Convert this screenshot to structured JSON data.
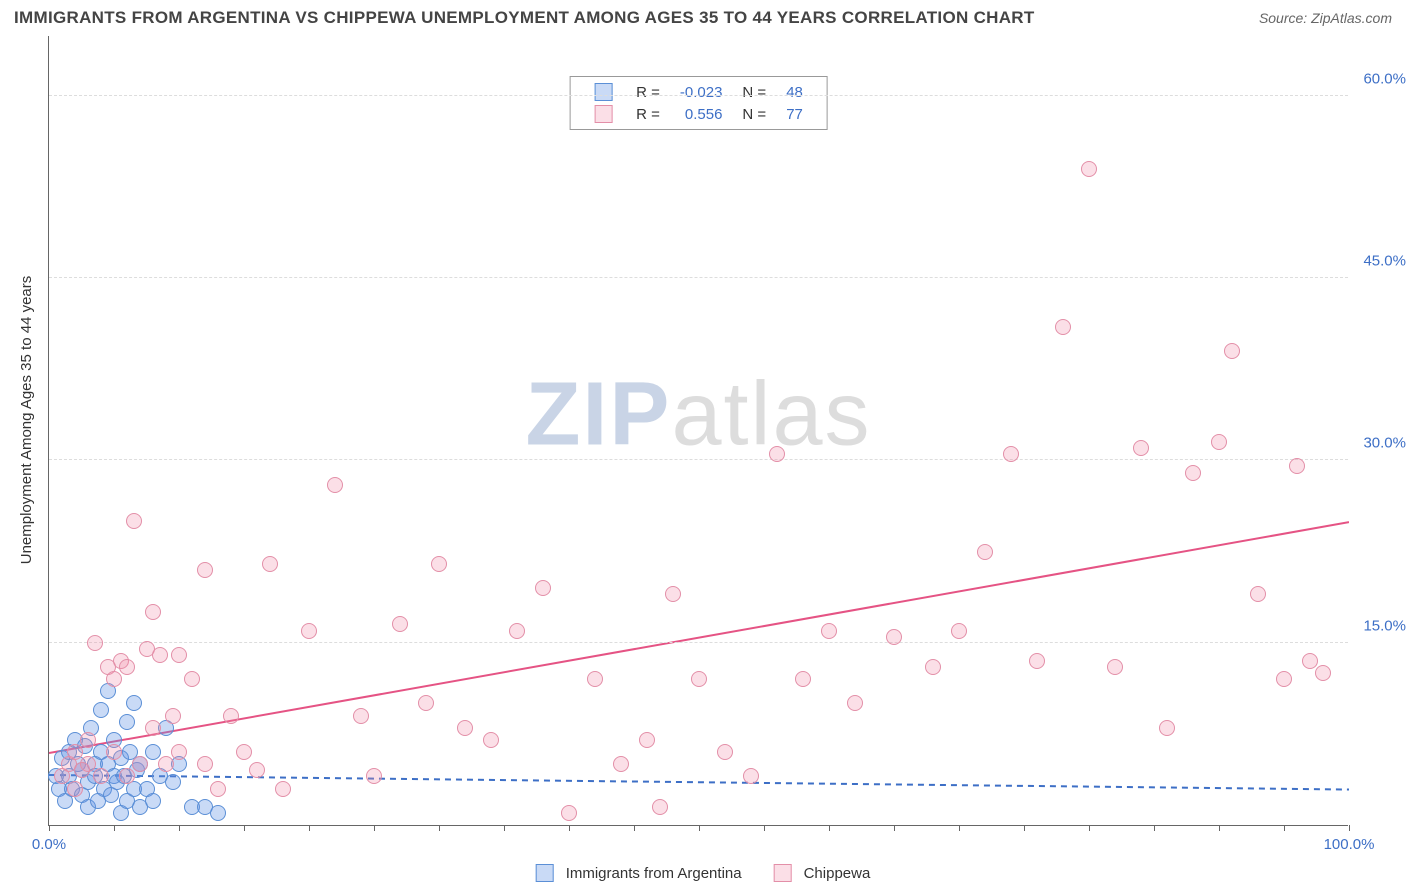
{
  "title": "IMMIGRANTS FROM ARGENTINA VS CHIPPEWA UNEMPLOYMENT AMONG AGES 35 TO 44 YEARS CORRELATION CHART",
  "source": "Source: ZipAtlas.com",
  "watermark_part1": "ZIP",
  "watermark_part2": "atlas",
  "y_axis_title": "Unemployment Among Ages 35 to 44 years",
  "chart": {
    "type": "scatter",
    "background_color": "#ffffff",
    "grid_color": "#dddddd",
    "axis_color": "#666666",
    "xlim": [
      0,
      100
    ],
    "ylim": [
      0,
      65
    ],
    "x_ticks": [
      0,
      5,
      10,
      15,
      20,
      25,
      30,
      35,
      40,
      45,
      50,
      55,
      60,
      65,
      70,
      75,
      80,
      85,
      90,
      95,
      100
    ],
    "x_tick_labels": {
      "0": "0.0%",
      "100": "100.0%"
    },
    "y_gridlines": [
      15,
      30,
      45,
      60
    ],
    "y_tick_labels": {
      "15": "15.0%",
      "30": "30.0%",
      "45": "45.0%",
      "60": "60.0%"
    },
    "marker_radius": 8,
    "marker_border_width": 1.2,
    "trend_line_width": 2
  },
  "series": [
    {
      "key": "argentina",
      "label": "Immigrants from Argentina",
      "fill_color": "rgba(100,150,230,0.35)",
      "stroke_color": "#5b8fd6",
      "line_color": "#3d6fc6",
      "line_dash": "6,5",
      "R": "-0.023",
      "N": "48",
      "trend": {
        "x1": 0,
        "y1": 4.2,
        "x2": 100,
        "y2": 3.0
      },
      "points": [
        [
          0.5,
          4.0
        ],
        [
          0.8,
          3.0
        ],
        [
          1.0,
          5.5
        ],
        [
          1.2,
          2.0
        ],
        [
          1.5,
          6.0
        ],
        [
          1.5,
          4.0
        ],
        [
          1.8,
          3.0
        ],
        [
          2.0,
          7.0
        ],
        [
          2.2,
          5.0
        ],
        [
          2.5,
          2.5
        ],
        [
          2.5,
          4.5
        ],
        [
          2.8,
          6.5
        ],
        [
          3.0,
          3.5
        ],
        [
          3.0,
          1.5
        ],
        [
          3.2,
          8.0
        ],
        [
          3.5,
          5.0
        ],
        [
          3.5,
          4.0
        ],
        [
          3.8,
          2.0
        ],
        [
          4.0,
          6.0
        ],
        [
          4.0,
          9.5
        ],
        [
          4.2,
          3.0
        ],
        [
          4.5,
          5.0
        ],
        [
          4.5,
          11.0
        ],
        [
          4.8,
          2.5
        ],
        [
          5.0,
          4.0
        ],
        [
          5.0,
          7.0
        ],
        [
          5.2,
          3.5
        ],
        [
          5.5,
          1.0
        ],
        [
          5.5,
          5.5
        ],
        [
          5.8,
          4.0
        ],
        [
          6.0,
          8.5
        ],
        [
          6.0,
          2.0
        ],
        [
          6.2,
          6.0
        ],
        [
          6.5,
          3.0
        ],
        [
          6.5,
          10.0
        ],
        [
          6.8,
          4.5
        ],
        [
          7.0,
          1.5
        ],
        [
          7.0,
          5.0
        ],
        [
          7.5,
          3.0
        ],
        [
          8.0,
          6.0
        ],
        [
          8.0,
          2.0
        ],
        [
          8.5,
          4.0
        ],
        [
          9.0,
          8.0
        ],
        [
          9.5,
          3.5
        ],
        [
          10.0,
          5.0
        ],
        [
          11.0,
          1.5
        ],
        [
          12.0,
          1.5
        ],
        [
          13.0,
          1.0
        ]
      ]
    },
    {
      "key": "chippewa",
      "label": "Chippewa",
      "fill_color": "rgba(240,140,170,0.28)",
      "stroke_color": "#e38fa8",
      "line_color": "#e55384",
      "line_dash": "",
      "R": "0.556",
      "N": "77",
      "trend": {
        "x1": 0,
        "y1": 6.0,
        "x2": 100,
        "y2": 25.0
      },
      "points": [
        [
          1.0,
          4.0
        ],
        [
          1.5,
          5.0
        ],
        [
          2.0,
          3.0
        ],
        [
          2.0,
          6.0
        ],
        [
          2.5,
          4.5
        ],
        [
          3.0,
          7.0
        ],
        [
          3.0,
          5.0
        ],
        [
          3.5,
          15.0
        ],
        [
          4.0,
          4.0
        ],
        [
          4.5,
          13.0
        ],
        [
          5.0,
          6.0
        ],
        [
          5.0,
          12.0
        ],
        [
          5.5,
          13.5
        ],
        [
          6.0,
          4.0
        ],
        [
          6.0,
          13.0
        ],
        [
          6.5,
          25.0
        ],
        [
          7.0,
          5.0
        ],
        [
          7.5,
          14.5
        ],
        [
          8.0,
          17.5
        ],
        [
          8.0,
          8.0
        ],
        [
          8.5,
          14.0
        ],
        [
          9.0,
          5.0
        ],
        [
          9.5,
          9.0
        ],
        [
          10.0,
          6.0
        ],
        [
          10.0,
          14.0
        ],
        [
          11.0,
          12.0
        ],
        [
          12.0,
          5.0
        ],
        [
          12.0,
          21.0
        ],
        [
          13.0,
          3.0
        ],
        [
          14.0,
          9.0
        ],
        [
          15.0,
          6.0
        ],
        [
          16.0,
          4.5
        ],
        [
          17.0,
          21.5
        ],
        [
          18.0,
          3.0
        ],
        [
          20.0,
          16.0
        ],
        [
          22.0,
          28.0
        ],
        [
          24.0,
          9.0
        ],
        [
          25.0,
          4.0
        ],
        [
          27.0,
          16.5
        ],
        [
          29.0,
          10.0
        ],
        [
          30.0,
          21.5
        ],
        [
          32.0,
          8.0
        ],
        [
          34.0,
          7.0
        ],
        [
          36.0,
          16.0
        ],
        [
          38.0,
          19.5
        ],
        [
          40.0,
          1.0
        ],
        [
          42.0,
          12.0
        ],
        [
          44.0,
          5.0
        ],
        [
          46.0,
          7.0
        ],
        [
          47.0,
          1.5
        ],
        [
          48.0,
          19.0
        ],
        [
          50.0,
          12.0
        ],
        [
          52.0,
          6.0
        ],
        [
          54.0,
          4.0
        ],
        [
          56.0,
          30.5
        ],
        [
          58.0,
          12.0
        ],
        [
          60.0,
          16.0
        ],
        [
          62.0,
          10.0
        ],
        [
          65.0,
          15.5
        ],
        [
          68.0,
          13.0
        ],
        [
          70.0,
          16.0
        ],
        [
          72.0,
          22.5
        ],
        [
          74.0,
          30.5
        ],
        [
          76.0,
          13.5
        ],
        [
          78.0,
          41.0
        ],
        [
          80.0,
          54.0
        ],
        [
          82.0,
          13.0
        ],
        [
          84.0,
          31.0
        ],
        [
          86.0,
          8.0
        ],
        [
          88.0,
          29.0
        ],
        [
          90.0,
          31.5
        ],
        [
          91.0,
          39.0
        ],
        [
          93.0,
          19.0
        ],
        [
          95.0,
          12.0
        ],
        [
          96.0,
          29.5
        ],
        [
          97.0,
          13.5
        ],
        [
          98.0,
          12.5
        ]
      ]
    }
  ],
  "legend_stat_labels": {
    "R": "R =",
    "N": "N ="
  },
  "stat_value_color": "#3d6fc6",
  "stat_label_color": "#333333"
}
